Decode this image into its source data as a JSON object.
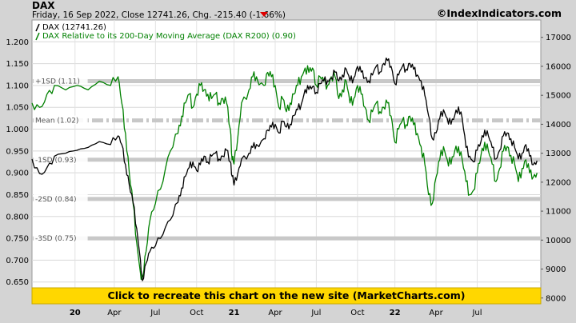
{
  "header": {
    "title": "DAX",
    "subtitle": "Friday, 16 Sep 2022, Close 12741.26, Chg. -215.40 (-1.66%)",
    "site": "©IndexIndicators.com"
  },
  "legend": [
    {
      "label": "DAX (12741.26)",
      "color": "#000000"
    },
    {
      "label": "DAX Relative to its 200-Day Moving Average (DAX R200) (0.90)",
      "color": "#008000"
    }
  ],
  "banner": {
    "text": "Click to recreate this chart on the new site (MarketCharts.com)",
    "color": "#ffd700"
  },
  "chart_data": {
    "type": "line",
    "left_axis": {
      "range": [
        0.6,
        1.25
      ],
      "ticks": [
        "1.200",
        "1.150",
        "1.100",
        "1.050",
        "1.000",
        "0.950",
        "0.900",
        "0.850",
        "0.800",
        "0.750",
        "0.700",
        "0.650"
      ]
    },
    "right_axis": {
      "range": [
        7800,
        17600
      ],
      "ticks": [
        "17000",
        "16000",
        "15000",
        "14000",
        "13000",
        "12000",
        "11000",
        "10000",
        "9000",
        "8000"
      ]
    },
    "x_ticks": [
      "20",
      "Apr",
      "Jul",
      "Oct",
      "21",
      "Apr",
      "Jul",
      "Oct",
      "22",
      "Apr",
      "Jul"
    ],
    "x_tick_years": [
      "20",
      "21",
      "22"
    ],
    "grid": true,
    "bands": [
      {
        "label": "+1SD (1.11)",
        "value": 1.11,
        "style": "solid"
      },
      {
        "label": "Mean (1.02)",
        "value": 1.02,
        "style": "dashdot"
      },
      {
        "label": "-1SD (0.93)",
        "value": 0.93,
        "style": "solid"
      },
      {
        "label": "-2SD (0.84)",
        "value": 0.84,
        "style": "solid"
      },
      {
        "label": "-3SD (0.75)",
        "value": 0.75,
        "style": "solid"
      }
    ],
    "series": [
      {
        "name": "DAX (12741.26)",
        "axis": "right",
        "color": "#000000",
        "points": [
          [
            0,
            12800
          ],
          [
            4,
            12300
          ],
          [
            8,
            12500
          ],
          [
            12,
            12900
          ],
          [
            18,
            13000
          ],
          [
            24,
            13100
          ],
          [
            30,
            13200
          ],
          [
            36,
            13400
          ],
          [
            42,
            13300
          ],
          [
            46,
            13600
          ],
          [
            48,
            13300
          ],
          [
            50,
            12600
          ],
          [
            52,
            11900
          ],
          [
            54,
            11300
          ],
          [
            56,
            10400
          ],
          [
            58,
            9300
          ],
          [
            59,
            8600
          ],
          [
            61,
            9200
          ],
          [
            63,
            9600
          ],
          [
            66,
            9800
          ],
          [
            70,
            10200
          ],
          [
            74,
            10700
          ],
          [
            78,
            11300
          ],
          [
            80,
            11800
          ],
          [
            82,
            12200
          ],
          [
            84,
            12500
          ],
          [
            86,
            12700
          ],
          [
            88,
            12400
          ],
          [
            90,
            12600
          ],
          [
            92,
            12900
          ],
          [
            94,
            12700
          ],
          [
            96,
            12900
          ],
          [
            98,
            13000
          ],
          [
            100,
            12800
          ],
          [
            102,
            12900
          ],
          [
            104,
            13100
          ],
          [
            106,
            12700
          ],
          [
            107,
            12200
          ],
          [
            108,
            11900
          ],
          [
            110,
            12300
          ],
          [
            112,
            12800
          ],
          [
            116,
            13000
          ],
          [
            118,
            13200
          ],
          [
            120,
            13300
          ],
          [
            124,
            13500
          ],
          [
            126,
            13800
          ],
          [
            128,
            13900
          ],
          [
            130,
            14000
          ],
          [
            132,
            13700
          ],
          [
            134,
            14100
          ],
          [
            136,
            13900
          ],
          [
            138,
            14000
          ],
          [
            140,
            14300
          ],
          [
            142,
            14500
          ],
          [
            144,
            14700
          ],
          [
            146,
            15200
          ],
          [
            148,
            15200
          ],
          [
            150,
            15300
          ],
          [
            152,
            15100
          ],
          [
            154,
            15400
          ],
          [
            156,
            15500
          ],
          [
            158,
            15500
          ],
          [
            160,
            15600
          ],
          [
            162,
            15800
          ],
          [
            164,
            15500
          ],
          [
            166,
            15700
          ],
          [
            168,
            15900
          ],
          [
            170,
            15500
          ],
          [
            172,
            15600
          ],
          [
            174,
            16000
          ],
          [
            176,
            15800
          ],
          [
            178,
            15600
          ],
          [
            180,
            15500
          ],
          [
            182,
            15700
          ],
          [
            184,
            16000
          ],
          [
            186,
            15800
          ],
          [
            188,
            16100
          ],
          [
            190,
            16200
          ],
          [
            192,
            16000
          ],
          [
            194,
            15400
          ],
          [
            196,
            15700
          ],
          [
            198,
            16000
          ],
          [
            200,
            15900
          ],
          [
            202,
            16100
          ],
          [
            204,
            15900
          ],
          [
            206,
            15700
          ],
          [
            208,
            15500
          ],
          [
            210,
            15000
          ],
          [
            212,
            14300
          ],
          [
            214,
            13500
          ],
          [
            216,
            13700
          ],
          [
            218,
            14200
          ],
          [
            220,
            14500
          ],
          [
            222,
            14200
          ],
          [
            224,
            14000
          ],
          [
            226,
            14300
          ],
          [
            228,
            14600
          ],
          [
            230,
            14200
          ],
          [
            232,
            13200
          ],
          [
            234,
            12900
          ],
          [
            236,
            12700
          ],
          [
            238,
            13100
          ],
          [
            240,
            13400
          ],
          [
            242,
            13800
          ],
          [
            244,
            13600
          ],
          [
            246,
            13200
          ],
          [
            248,
            12800
          ],
          [
            250,
            13100
          ],
          [
            252,
            13600
          ],
          [
            254,
            13700
          ],
          [
            256,
            13500
          ],
          [
            258,
            13200
          ],
          [
            260,
            12800
          ],
          [
            262,
            13000
          ],
          [
            264,
            13300
          ],
          [
            266,
            12900
          ],
          [
            268,
            12600
          ],
          [
            270,
            12741
          ]
        ]
      },
      {
        "name": "DAX Relative to its 200-Day Moving Average (DAX R200) (0.90)",
        "axis": "left",
        "color": "#008000",
        "points": [
          [
            0,
            1.06
          ],
          [
            4,
            1.05
          ],
          [
            8,
            1.08
          ],
          [
            12,
            1.1
          ],
          [
            18,
            1.09
          ],
          [
            24,
            1.1
          ],
          [
            30,
            1.09
          ],
          [
            36,
            1.11
          ],
          [
            42,
            1.1
          ],
          [
            46,
            1.12
          ],
          [
            48,
            1.06
          ],
          [
            50,
            0.99
          ],
          [
            52,
            0.9
          ],
          [
            54,
            0.83
          ],
          [
            56,
            0.74
          ],
          [
            58,
            0.67
          ],
          [
            59,
            0.66
          ],
          [
            61,
            0.72
          ],
          [
            63,
            0.79
          ],
          [
            66,
            0.83
          ],
          [
            70,
            0.88
          ],
          [
            74,
            0.95
          ],
          [
            78,
            0.99
          ],
          [
            80,
            1.03
          ],
          [
            82,
            1.06
          ],
          [
            84,
            1.08
          ],
          [
            86,
            1.05
          ],
          [
            88,
            1.08
          ],
          [
            90,
            1.1
          ],
          [
            92,
            1.09
          ],
          [
            94,
            1.08
          ],
          [
            96,
            1.07
          ],
          [
            98,
            1.08
          ],
          [
            100,
            1.06
          ],
          [
            102,
            1.07
          ],
          [
            104,
            1.06
          ],
          [
            106,
            1.0
          ],
          [
            107,
            0.93
          ],
          [
            108,
            0.92
          ],
          [
            110,
            0.98
          ],
          [
            112,
            1.06
          ],
          [
            116,
            1.09
          ],
          [
            118,
            1.12
          ],
          [
            120,
            1.12
          ],
          [
            124,
            1.1
          ],
          [
            126,
            1.13
          ],
          [
            128,
            1.12
          ],
          [
            130,
            1.1
          ],
          [
            132,
            1.05
          ],
          [
            134,
            1.07
          ],
          [
            136,
            1.04
          ],
          [
            138,
            1.06
          ],
          [
            140,
            1.08
          ],
          [
            142,
            1.1
          ],
          [
            144,
            1.12
          ],
          [
            146,
            1.14
          ],
          [
            148,
            1.13
          ],
          [
            150,
            1.14
          ],
          [
            152,
            1.1
          ],
          [
            154,
            1.12
          ],
          [
            156,
            1.11
          ],
          [
            158,
            1.1
          ],
          [
            160,
            1.12
          ],
          [
            162,
            1.12
          ],
          [
            164,
            1.07
          ],
          [
            166,
            1.09
          ],
          [
            168,
            1.11
          ],
          [
            170,
            1.06
          ],
          [
            172,
            1.07
          ],
          [
            174,
            1.1
          ],
          [
            176,
            1.08
          ],
          [
            178,
            1.05
          ],
          [
            180,
            1.02
          ],
          [
            182,
            1.04
          ],
          [
            184,
            1.06
          ],
          [
            186,
            1.04
          ],
          [
            188,
            1.05
          ],
          [
            190,
            1.06
          ],
          [
            192,
            1.03
          ],
          [
            194,
            0.97
          ],
          [
            196,
            1.0
          ],
          [
            198,
            1.02
          ],
          [
            200,
            1.01
          ],
          [
            202,
            1.03
          ],
          [
            204,
            1.01
          ],
          [
            206,
            0.99
          ],
          [
            208,
            0.96
          ],
          [
            210,
            0.92
          ],
          [
            212,
            0.85
          ],
          [
            214,
            0.83
          ],
          [
            216,
            0.89
          ],
          [
            218,
            0.93
          ],
          [
            220,
            0.96
          ],
          [
            222,
            0.93
          ],
          [
            224,
            0.92
          ],
          [
            226,
            0.95
          ],
          [
            228,
            0.96
          ],
          [
            230,
            0.93
          ],
          [
            232,
            0.88
          ],
          [
            234,
            0.85
          ],
          [
            236,
            0.86
          ],
          [
            238,
            0.9
          ],
          [
            240,
            0.94
          ],
          [
            242,
            0.97
          ],
          [
            244,
            0.95
          ],
          [
            246,
            0.92
          ],
          [
            248,
            0.88
          ],
          [
            250,
            0.91
          ],
          [
            252,
            0.95
          ],
          [
            254,
            0.96
          ],
          [
            256,
            0.94
          ],
          [
            258,
            0.92
          ],
          [
            260,
            0.88
          ],
          [
            262,
            0.91
          ],
          [
            264,
            0.93
          ],
          [
            266,
            0.9
          ],
          [
            268,
            0.89
          ],
          [
            270,
            0.9
          ]
        ]
      }
    ]
  }
}
